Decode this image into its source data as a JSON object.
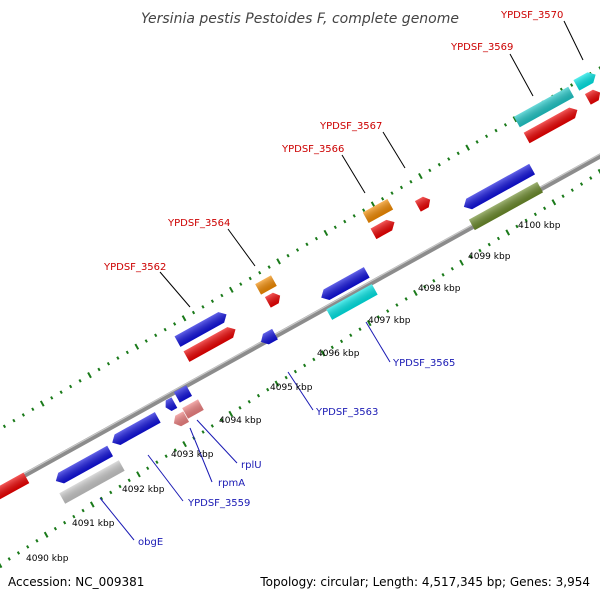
{
  "title": "Yersinia pestis Pestoides F, complete genome",
  "footer": {
    "accession": "Accession: NC_009381",
    "summary": "Topology: circular; Length: 4,517,345 bp; Genes: 3,954"
  },
  "colors": {
    "backbone": "#8c8c8c",
    "dots": "#1a7a1a",
    "label_top": "#cc0000",
    "label_bottom": "#1a1ab4",
    "tick_label": "#000000"
  },
  "ticks": [
    "4090 kbp",
    "4091 kbp",
    "4092 kbp",
    "4093 kbp",
    "4094 kbp",
    "4095 kbp",
    "4096 kbp",
    "4097 kbp",
    "4098 kbp",
    "4099 kbp",
    "4100 kbp"
  ],
  "gene_labels_top": [
    "YPDSF_3562",
    "YPDSF_3564",
    "YPDSF_3566",
    "YPDSF_3567",
    "YPDSF_3569",
    "YPDSF_3570"
  ],
  "gene_labels_bottom": [
    "obgE",
    "YPDSF_3559",
    "rpmA",
    "rplU",
    "YPDSF_3563",
    "YPDSF_3565"
  ]
}
